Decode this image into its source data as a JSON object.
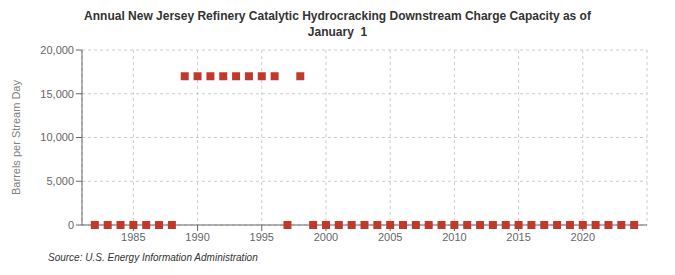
{
  "chart_data": {
    "type": "scatter",
    "title": "Annual New Jersey Refinery Catalytic Hydrocracking Downstream Charge Capacity as of\nJanuary  1",
    "y_label": "Barrels per Stream Day",
    "annotations": [
      "Source: U.S. Energy Information Administration"
    ],
    "x": [
      1982,
      1983,
      1984,
      1985,
      1986,
      1987,
      1988,
      1989,
      1990,
      1991,
      1992,
      1993,
      1994,
      1995,
      1996,
      1997,
      1998,
      1999,
      2000,
      2001,
      2002,
      2003,
      2004,
      2005,
      2006,
      2007,
      2008,
      2009,
      2010,
      2011,
      2012,
      2013,
      2014,
      2015,
      2016,
      2017,
      2018,
      2019,
      2020,
      2021,
      2022,
      2023,
      2024
    ],
    "values": [
      0,
      0,
      0,
      0,
      0,
      0,
      0,
      17000,
      17000,
      17000,
      17000,
      17000,
      17000,
      17000,
      17000,
      0,
      17000,
      0,
      0,
      0,
      0,
      0,
      0,
      0,
      0,
      0,
      0,
      0,
      0,
      0,
      0,
      0,
      0,
      0,
      0,
      0,
      0,
      0,
      0,
      0,
      0,
      0,
      0
    ],
    "color": "#c0392b",
    "marker": "square",
    "xlim": [
      1981,
      2025
    ],
    "ylim": [
      0,
      20000
    ],
    "xticks": [
      1985,
      1990,
      1995,
      2000,
      2005,
      2010,
      2015,
      2020
    ],
    "yticks": [
      0,
      {
        "value": 5000,
        "label": "5,000"
      },
      {
        "value": 10000,
        "label": "10,000"
      },
      {
        "value": 15000,
        "label": "15,000"
      },
      {
        "value": 20000,
        "label": "20,000"
      }
    ],
    "grid": true
  }
}
